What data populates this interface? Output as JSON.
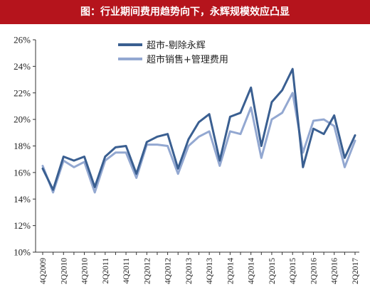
{
  "title": "图：行业期间费用趋势向下，永辉规模效应凸显",
  "colors": {
    "banner": "#b5141c",
    "series1": "#3a5f91",
    "series2": "#93a8d1"
  },
  "chart_data": {
    "type": "line",
    "title": "图：行业期间费用趋势向下，永辉规模效应凸显",
    "ylim": [
      10,
      26
    ],
    "yticks": [
      "10%",
      "12%",
      "14%",
      "16%",
      "18%",
      "20%",
      "22%",
      "24%",
      "26%"
    ],
    "grid": false,
    "legend_position": "top-left",
    "x": [
      "4Q2009",
      "1Q2010",
      "2Q2010",
      "3Q2010",
      "4Q2010",
      "1Q2011",
      "2Q2011",
      "3Q2011",
      "4Q2011",
      "1Q2012",
      "2Q2012",
      "3Q2012",
      "4Q2012",
      "1Q2013",
      "2Q2013",
      "3Q2013",
      "4Q2013",
      "1Q2014",
      "2Q2014",
      "3Q2014",
      "4Q2014",
      "1Q2015",
      "2Q2015",
      "3Q2015",
      "4Q2015",
      "1Q2016",
      "2Q2016",
      "3Q2016",
      "4Q2016",
      "1Q2017",
      "2Q2017"
    ],
    "x_tick_labels": [
      "4Q2009",
      "2Q2010",
      "4Q2010",
      "2Q2011",
      "4Q2011",
      "2Q2012",
      "4Q2012",
      "2Q2013",
      "4Q2013",
      "2Q2014",
      "4Q2014",
      "2Q2015",
      "4Q2015",
      "2Q2016",
      "4Q2016",
      "2Q2017"
    ],
    "series": [
      {
        "name": "超市-剔除永辉",
        "values": [
          16.3,
          14.7,
          17.2,
          16.9,
          17.2,
          14.9,
          17.2,
          17.9,
          18.0,
          15.9,
          18.3,
          18.7,
          18.9,
          16.3,
          18.5,
          19.8,
          20.4,
          16.9,
          20.2,
          20.5,
          22.4,
          18.0,
          21.3,
          22.2,
          23.8,
          16.4,
          19.3,
          18.9,
          20.3,
          17.1,
          18.8
        ]
      },
      {
        "name": "超市销售+管理费用",
        "values": [
          16.5,
          14.5,
          16.9,
          16.4,
          16.8,
          14.5,
          16.9,
          17.5,
          17.5,
          15.6,
          18.1,
          18.1,
          18.0,
          15.9,
          18.0,
          18.7,
          19.1,
          16.5,
          19.1,
          18.9,
          20.9,
          17.1,
          20.0,
          20.5,
          22.0,
          17.5,
          19.9,
          20.0,
          19.5,
          16.4,
          18.4
        ]
      }
    ]
  }
}
